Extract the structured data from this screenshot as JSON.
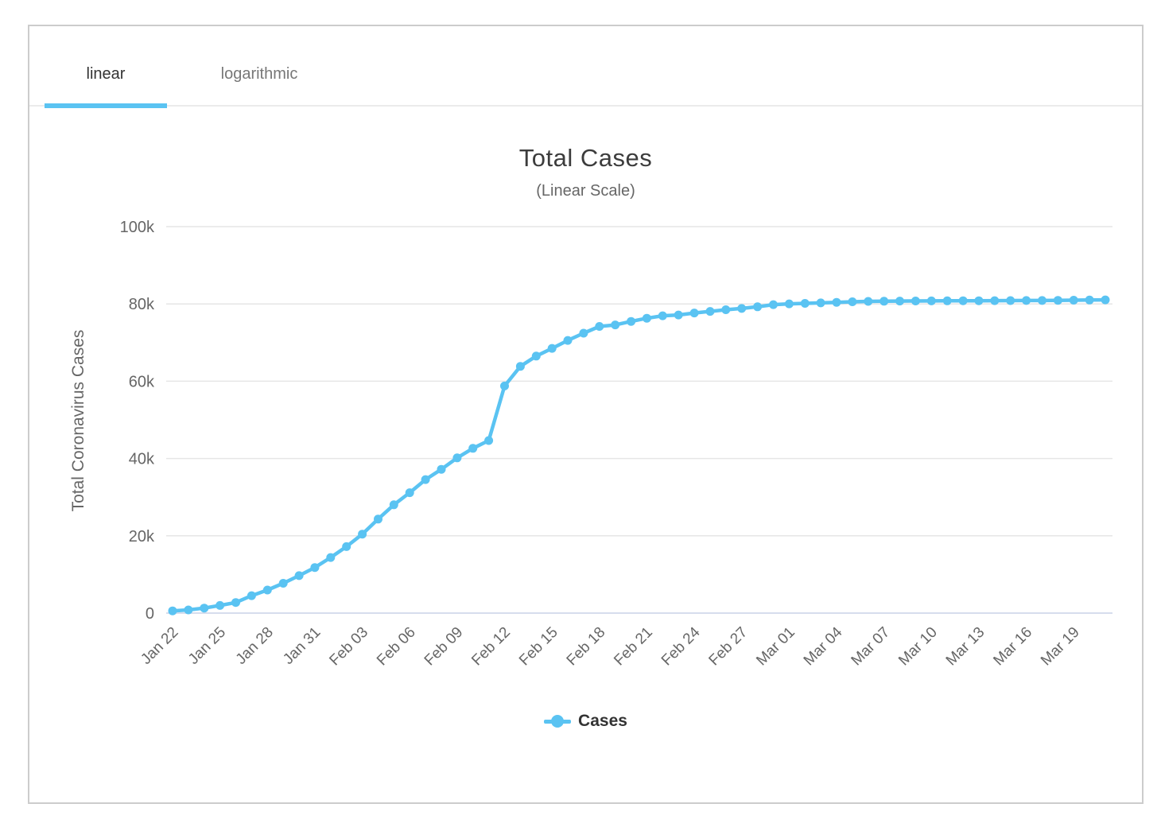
{
  "tabs": [
    {
      "label": "linear",
      "active": true
    },
    {
      "label": "logarithmic",
      "active": false
    }
  ],
  "colors": {
    "accent": "#5ac3f2",
    "tab_indicator": "#58c0f0",
    "grid_line": "#e6e6e6",
    "axis_line": "#ccd6eb",
    "tick_text": "#666666",
    "title_text": "#3c3c3c"
  },
  "chart_data": {
    "type": "line",
    "title": "Total Cases",
    "subtitle": "(Linear Scale)",
    "xlabel": "",
    "ylabel": "Total Coronavirus Cases",
    "legend_position": "bottom-center",
    "grid": true,
    "ylim": [
      0,
      100000
    ],
    "yticks": [
      {
        "value": 0,
        "label": "0"
      },
      {
        "value": 20000,
        "label": "20k"
      },
      {
        "value": 40000,
        "label": "40k"
      },
      {
        "value": 60000,
        "label": "60k"
      },
      {
        "value": 80000,
        "label": "80k"
      },
      {
        "value": 100000,
        "label": "100k"
      }
    ],
    "x_tick_interval": 3,
    "x_tick_labels": [
      "Jan 22",
      "Jan 25",
      "Jan 28",
      "Jan 31",
      "Feb 03",
      "Feb 06",
      "Feb 09",
      "Feb 12",
      "Feb 15",
      "Feb 18",
      "Feb 21",
      "Feb 24",
      "Feb 27",
      "Mar 01",
      "Mar 04",
      "Mar 07",
      "Mar 10",
      "Mar 13",
      "Mar 16",
      "Mar 19"
    ],
    "categories": [
      "Jan 22",
      "Jan 23",
      "Jan 24",
      "Jan 25",
      "Jan 26",
      "Jan 27",
      "Jan 28",
      "Jan 29",
      "Jan 30",
      "Jan 31",
      "Feb 01",
      "Feb 02",
      "Feb 03",
      "Feb 04",
      "Feb 05",
      "Feb 06",
      "Feb 07",
      "Feb 08",
      "Feb 09",
      "Feb 10",
      "Feb 11",
      "Feb 12",
      "Feb 13",
      "Feb 14",
      "Feb 15",
      "Feb 16",
      "Feb 17",
      "Feb 18",
      "Feb 19",
      "Feb 20",
      "Feb 21",
      "Feb 22",
      "Feb 23",
      "Feb 24",
      "Feb 25",
      "Feb 26",
      "Feb 27",
      "Feb 28",
      "Feb 29",
      "Mar 01",
      "Mar 02",
      "Mar 03",
      "Mar 04",
      "Mar 05",
      "Mar 06",
      "Mar 07",
      "Mar 08",
      "Mar 09",
      "Mar 10",
      "Mar 11",
      "Mar 12",
      "Mar 13",
      "Mar 14",
      "Mar 15",
      "Mar 16",
      "Mar 17",
      "Mar 18",
      "Mar 19",
      "Mar 20",
      "Mar 21"
    ],
    "series": [
      {
        "name": "Cases",
        "color": "#5ac3f2",
        "values": [
          571,
          830,
          1287,
          1975,
          2744,
          4515,
          5974,
          7711,
          9692,
          11791,
          14380,
          17205,
          20440,
          24324,
          28018,
          31161,
          34546,
          37198,
          40171,
          42638,
          44653,
          58761,
          63851,
          66492,
          68500,
          70548,
          72436,
          74185,
          74576,
          75465,
          76288,
          76936,
          77150,
          77658,
          78064,
          78497,
          78824,
          79251,
          79824,
          80026,
          80151,
          80270,
          80409,
          80552,
          80651,
          80695,
          80735,
          80754,
          80778,
          80793,
          80813,
          80824,
          80844,
          80860,
          80881,
          80894,
          80928,
          80967,
          81008,
          81054
        ]
      }
    ]
  }
}
